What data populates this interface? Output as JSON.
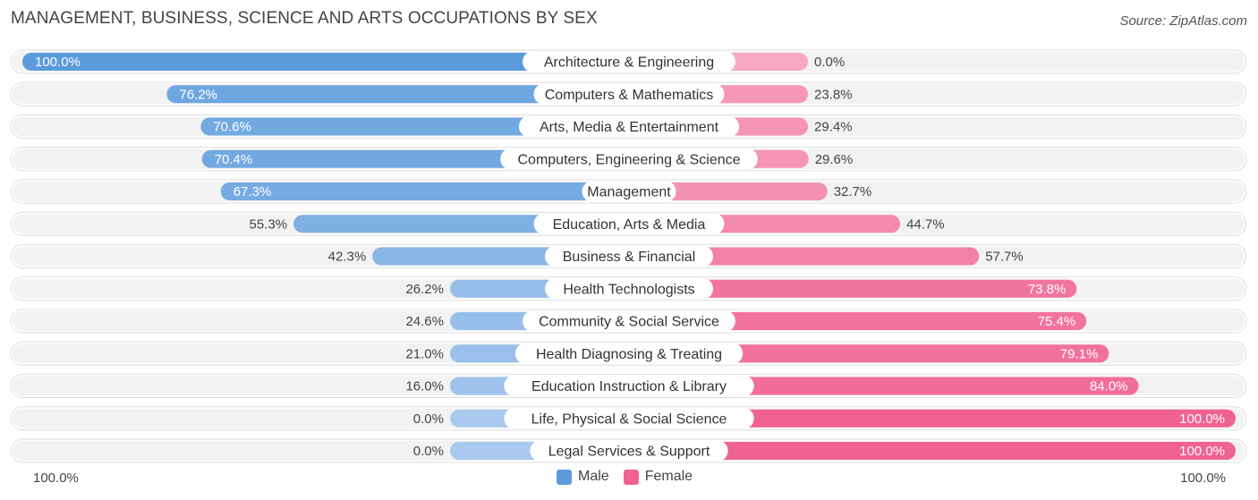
{
  "title": "MANAGEMENT, BUSINESS, SCIENCE AND ARTS OCCUPATIONS BY SEX",
  "source": "Source: ZipAtlas.com",
  "axis": {
    "left_label": "100.0%",
    "right_label": "100.0%"
  },
  "legend": {
    "male_label": "Male",
    "female_label": "Female"
  },
  "colors": {
    "male_strong": "#5b9bdc",
    "male_light": "#a9c9ee",
    "female_strong": "#f06292",
    "female_light": "#f7a9c4",
    "row_bg": "#f2f2f2"
  },
  "chart_data": {
    "type": "bar",
    "orientation": "horizontal-diverging",
    "title": "MANAGEMENT, BUSINESS, SCIENCE AND ARTS OCCUPATIONS BY SEX",
    "categories": [
      "Architecture & Engineering",
      "Computers & Mathematics",
      "Arts, Media & Entertainment",
      "Computers, Engineering & Science",
      "Management",
      "Education, Arts & Media",
      "Business & Financial",
      "Health Technologists",
      "Community & Social Service",
      "Health Diagnosing & Treating",
      "Education Instruction & Library",
      "Life, Physical & Social Science",
      "Legal Services & Support"
    ],
    "series": [
      {
        "name": "Male",
        "values": [
          100.0,
          76.2,
          70.6,
          70.4,
          67.3,
          55.3,
          42.3,
          26.2,
          24.6,
          21.0,
          16.0,
          0.0,
          0.0
        ],
        "labels": [
          "100.0%",
          "76.2%",
          "70.6%",
          "70.4%",
          "67.3%",
          "55.3%",
          "42.3%",
          "26.2%",
          "24.6%",
          "21.0%",
          "16.0%",
          "0.0%",
          "0.0%"
        ]
      },
      {
        "name": "Female",
        "values": [
          0.0,
          23.8,
          29.4,
          29.6,
          32.7,
          44.7,
          57.7,
          73.8,
          75.4,
          79.1,
          84.0,
          100.0,
          100.0
        ],
        "labels": [
          "0.0%",
          "23.8%",
          "29.4%",
          "29.6%",
          "32.7%",
          "44.7%",
          "57.7%",
          "73.8%",
          "75.4%",
          "79.1%",
          "84.0%",
          "100.0%",
          "100.0%"
        ]
      }
    ],
    "xlim": [
      0,
      100
    ],
    "legend_position": "bottom-center"
  }
}
